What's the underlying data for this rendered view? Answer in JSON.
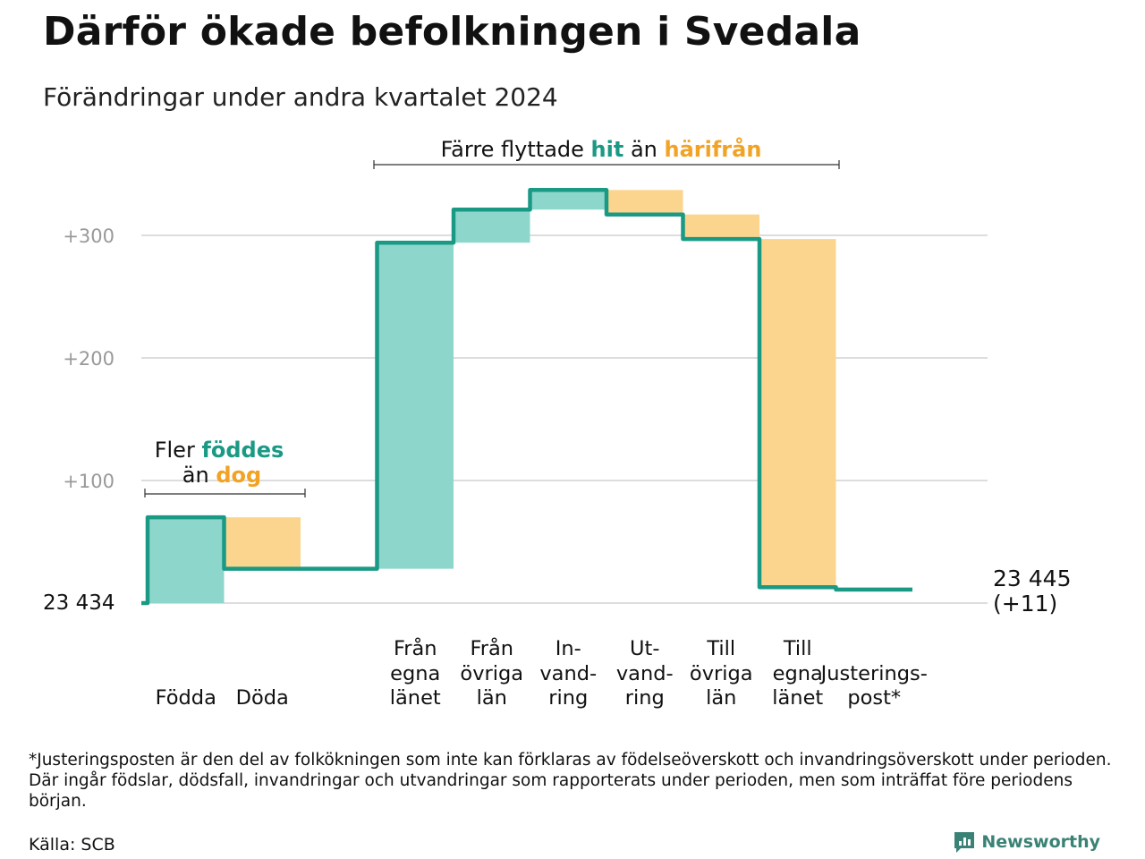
{
  "title": "Därför ökade befolkningen i Svedala",
  "subtitle": "Förändringar under andra kvartalet 2024",
  "colors": {
    "inflow": "#1a9985",
    "inflow_fill": "#8dd6cc",
    "outflow": "#f2a224",
    "outflow_fill": "#fbd58e",
    "grid": "#dddddd",
    "axis_text": "#999999"
  },
  "chart_data": {
    "type": "waterfall",
    "start": {
      "label": "23  434",
      "value": 23434
    },
    "end": {
      "label": "23 445",
      "delta_label": "(+11)",
      "value": 23445
    },
    "y_ticks": [
      {
        "value": 100,
        "label": "+100"
      },
      {
        "value": 200,
        "label": "+200"
      },
      {
        "value": 300,
        "label": "+300"
      }
    ],
    "steps": [
      {
        "label": [
          "",
          "",
          "Födda"
        ],
        "value": 70,
        "kind": "in"
      },
      {
        "label": [
          "",
          "",
          "Döda"
        ],
        "value": -42,
        "kind": "out"
      },
      {
        "label": [],
        "value": 0,
        "kind": "gap"
      },
      {
        "label": [
          "Från",
          "egna",
          "länet"
        ],
        "value": 266,
        "kind": "in"
      },
      {
        "label": [
          "Från",
          "övriga",
          "län"
        ],
        "value": 27,
        "kind": "in"
      },
      {
        "label": [
          "In-",
          "vand-",
          "ring"
        ],
        "value": 16,
        "kind": "in"
      },
      {
        "label": [
          "Ut-",
          "vand-",
          "ring"
        ],
        "value": -20,
        "kind": "out"
      },
      {
        "label": [
          "Till",
          "övriga",
          "län"
        ],
        "value": -20,
        "kind": "out"
      },
      {
        "label": [
          "Till",
          "egna",
          "länet"
        ],
        "value": -284,
        "kind": "out"
      },
      {
        "label": [
          "",
          "Justerings-",
          "post*"
        ],
        "value": -2,
        "kind": "adjust"
      }
    ],
    "annotations": [
      {
        "parts": [
          "Fler ",
          "föddes",
          "än ",
          "dog"
        ]
      },
      {
        "parts": [
          "Färre flyttade ",
          "hit",
          " än ",
          "härifrån"
        ]
      }
    ]
  },
  "footnote": "*Justeringsposten är den del av folkökningen som inte kan förklaras av födelseöverskott och invandringsöverskott under perioden. Där ingår födslar, dödsfall, invandringar och utvandringar som rapporterats under perioden, men som inträffat före periodens början.",
  "source": "Källa: SCB",
  "brand": {
    "name": "Newsworthy",
    "icon": "newsworthy-logo-icon"
  }
}
